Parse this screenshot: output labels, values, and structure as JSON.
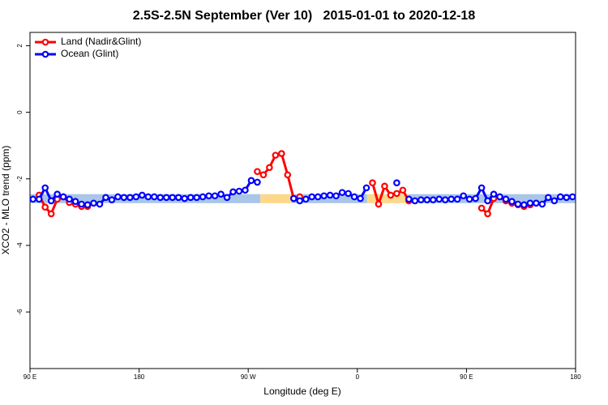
{
  "chart_data": {
    "type": "line",
    "title": "2.5S-2.5N September (Ver 10)   2015-01-01 to 2020-12-18",
    "x_label": "Longitude (deg E)",
    "y_label": "XCO2 - MLO trend (ppm)",
    "xlim": [
      90,
      540
    ],
    "xticks": [
      {
        "value": 90,
        "label": "90 E"
      },
      180,
      {
        "value": 270,
        "label": "90 W"
      },
      {
        "value": 360,
        "label": "0"
      },
      {
        "value": 450,
        "label": "90 E"
      },
      {
        "value": 540,
        "label": "180"
      }
    ],
    "ylim": [
      -7.7,
      2.4
    ],
    "yticks": [
      2,
      0,
      -2,
      -4,
      -6
    ],
    "legend": "top-left",
    "band": {
      "ylim": [
        -2.73,
        -2.46
      ],
      "regions": [
        {
          "xlim": [
            90,
            280
          ],
          "color": "#a9c6e8"
        },
        {
          "xlim": [
            280,
            306
          ],
          "color": "#fdd88a"
        },
        {
          "xlim": [
            306,
            368
          ],
          "color": "#a9c6e8"
        },
        {
          "xlim": [
            368,
            402
          ],
          "color": "#fdd88a"
        },
        {
          "xlim": [
            402,
            540
          ],
          "color": "#a9c6e8"
        }
      ]
    },
    "x": [
      92.5,
      97.5,
      102.5,
      107.5,
      112.5,
      117.5,
      122.5,
      127.5,
      132.5,
      137.5,
      142.5,
      147.5,
      152.5,
      157.5,
      162.5,
      167.5,
      172.5,
      177.5,
      182.5,
      187.5,
      192.5,
      197.5,
      202.5,
      207.5,
      212.5,
      217.5,
      222.5,
      227.5,
      232.5,
      237.5,
      242.5,
      247.5,
      252.5,
      257.5,
      262.5,
      267.5,
      272.5,
      277.5,
      282.5,
      287.5,
      292.5,
      297.5,
      302.5,
      307.5,
      312.5,
      317.5,
      322.5,
      327.5,
      332.5,
      337.5,
      342.5,
      347.5,
      352.5,
      357.5,
      362.5,
      367.5,
      372.5,
      377.5,
      382.5,
      387.5,
      392.5,
      397.5,
      402.5,
      407.5,
      412.5,
      417.5,
      422.5,
      427.5,
      432.5,
      437.5,
      442.5,
      447.5,
      452.5,
      457.5,
      462.5,
      467.5,
      472.5,
      477.5,
      482.5,
      487.5,
      492.5,
      497.5,
      502.5,
      507.5,
      512.5,
      517.5,
      522.5,
      527.5,
      532.5,
      537.5
    ],
    "series": [
      {
        "name": "Land (Nadir&Glint)",
        "color": "#ff0000",
        "values": [
          null,
          -2.49,
          -2.85,
          -3.05,
          -2.61,
          -2.54,
          -2.71,
          -2.76,
          -2.83,
          -2.83,
          null,
          null,
          null,
          null,
          null,
          null,
          null,
          null,
          null,
          null,
          null,
          null,
          null,
          null,
          null,
          null,
          null,
          null,
          null,
          null,
          null,
          null,
          null,
          null,
          null,
          null,
          null,
          -1.78,
          -1.88,
          -1.66,
          -1.29,
          -1.24,
          -1.88,
          -2.59,
          -2.54,
          null,
          null,
          null,
          null,
          null,
          null,
          null,
          null,
          null,
          null,
          null,
          -2.12,
          -2.76,
          -2.22,
          -2.49,
          -2.44,
          -2.34,
          -2.66,
          null,
          null,
          null,
          null,
          null,
          null,
          null,
          null,
          null,
          null,
          null,
          -2.88,
          -3.05,
          -2.59,
          -2.54,
          -2.66,
          -2.73,
          -2.78,
          -2.83,
          -2.78,
          null,
          null,
          null,
          null,
          null,
          null,
          null
        ]
      },
      {
        "name": "Ocean (Glint)",
        "color": "#0000ff",
        "values": [
          -2.61,
          -2.61,
          -2.27,
          -2.66,
          -2.46,
          -2.54,
          -2.61,
          -2.68,
          -2.76,
          -2.78,
          -2.73,
          -2.76,
          -2.56,
          -2.63,
          -2.54,
          -2.56,
          -2.56,
          -2.54,
          -2.49,
          -2.54,
          -2.54,
          -2.56,
          -2.56,
          -2.56,
          -2.56,
          -2.59,
          -2.56,
          -2.56,
          -2.54,
          -2.51,
          -2.51,
          -2.46,
          -2.56,
          -2.39,
          -2.37,
          -2.34,
          -2.05,
          -2.1,
          null,
          null,
          null,
          null,
          null,
          -2.59,
          -2.66,
          -2.61,
          -2.54,
          -2.54,
          -2.51,
          -2.49,
          -2.51,
          -2.41,
          -2.44,
          -2.54,
          -2.59,
          -2.27,
          null,
          null,
          null,
          null,
          -2.12,
          null,
          -2.61,
          -2.66,
          -2.63,
          -2.63,
          -2.63,
          -2.61,
          -2.63,
          -2.61,
          -2.61,
          -2.51,
          -2.61,
          -2.59,
          -2.27,
          -2.66,
          -2.46,
          -2.54,
          -2.61,
          -2.68,
          -2.76,
          -2.78,
          -2.73,
          -2.73,
          -2.76,
          -2.56,
          -2.66,
          -2.54,
          -2.56,
          -2.54
        ]
      }
    ]
  }
}
